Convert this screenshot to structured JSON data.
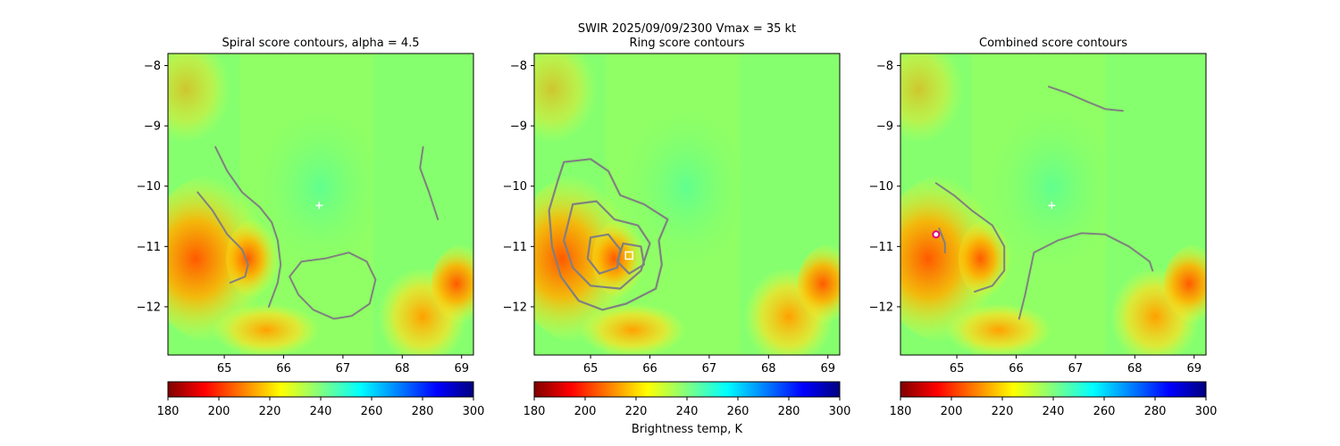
{
  "figure": {
    "suptitle_line1": "SWIR  2025/09/09/2300    Vmax = 35 kt",
    "colorbar_label": "Brightness temp, K"
  },
  "chart_data": [
    {
      "type": "heatmap",
      "title": "Spiral score contours, alpha =  4.5",
      "xlabel": "",
      "ylabel": "",
      "xlim": [
        64.05,
        69.2
      ],
      "ylim": [
        -12.8,
        -7.8
      ],
      "xticks": [
        65,
        66,
        67,
        68,
        69
      ],
      "yticks": [
        -8,
        -9,
        -10,
        -11,
        -12
      ],
      "grid": false,
      "contour_color": "#808080",
      "contours": [
        [
          [
            64.85,
            -9.35
          ],
          [
            65.05,
            -9.75
          ],
          [
            65.3,
            -10.1
          ],
          [
            65.6,
            -10.35
          ],
          [
            65.8,
            -10.6
          ],
          [
            65.9,
            -10.9
          ],
          [
            65.95,
            -11.3
          ],
          [
            65.9,
            -11.6
          ],
          [
            65.75,
            -12.0
          ]
        ],
        [
          [
            64.55,
            -10.1
          ],
          [
            64.8,
            -10.4
          ],
          [
            65.05,
            -10.8
          ],
          [
            65.3,
            -11.05
          ],
          [
            65.4,
            -11.3
          ],
          [
            65.35,
            -11.5
          ],
          [
            65.1,
            -11.6
          ]
        ],
        [
          [
            68.35,
            -9.35
          ],
          [
            68.3,
            -9.7
          ],
          [
            68.45,
            -10.1
          ],
          [
            68.6,
            -10.55
          ]
        ],
        [
          [
            66.1,
            -11.5
          ],
          [
            66.3,
            -11.25
          ],
          [
            66.7,
            -11.2
          ],
          [
            67.1,
            -11.1
          ],
          [
            67.4,
            -11.25
          ],
          [
            67.55,
            -11.55
          ],
          [
            67.45,
            -11.95
          ],
          [
            67.15,
            -12.15
          ],
          [
            66.85,
            -12.2
          ],
          [
            66.5,
            -12.05
          ],
          [
            66.25,
            -11.8
          ],
          [
            66.1,
            -11.5
          ]
        ]
      ],
      "markers": [
        {
          "shape": "plus",
          "x": 66.6,
          "y": -10.32,
          "color": "#ffffff"
        }
      ]
    },
    {
      "type": "heatmap",
      "title": "Ring score contours",
      "xlabel": "",
      "ylabel": "",
      "xlim": [
        64.05,
        69.2
      ],
      "ylim": [
        -12.8,
        -7.8
      ],
      "xticks": [
        65,
        66,
        67,
        68,
        69
      ],
      "yticks": [
        -8,
        -9,
        -10,
        -11,
        -12
      ],
      "grid": false,
      "contour_color": "#808080",
      "contours": [
        [
          [
            64.55,
            -9.6
          ],
          [
            65.0,
            -9.55
          ],
          [
            65.3,
            -9.75
          ],
          [
            65.5,
            -10.15
          ],
          [
            65.9,
            -10.3
          ],
          [
            66.3,
            -10.55
          ],
          [
            66.15,
            -10.9
          ],
          [
            66.2,
            -11.3
          ],
          [
            66.1,
            -11.7
          ],
          [
            65.6,
            -11.95
          ],
          [
            65.2,
            -12.05
          ],
          [
            64.8,
            -11.9
          ],
          [
            64.5,
            -11.5
          ],
          [
            64.35,
            -11.0
          ],
          [
            64.3,
            -10.4
          ],
          [
            64.45,
            -9.9
          ],
          [
            64.55,
            -9.6
          ]
        ],
        [
          [
            64.7,
            -10.3
          ],
          [
            65.1,
            -10.25
          ],
          [
            65.4,
            -10.55
          ],
          [
            65.8,
            -10.65
          ],
          [
            66.0,
            -10.95
          ],
          [
            65.85,
            -11.4
          ],
          [
            65.5,
            -11.7
          ],
          [
            65.0,
            -11.65
          ],
          [
            64.7,
            -11.35
          ],
          [
            64.55,
            -10.9
          ],
          [
            64.7,
            -10.3
          ]
        ],
        [
          [
            65.0,
            -10.85
          ],
          [
            65.3,
            -10.8
          ],
          [
            65.5,
            -11.05
          ],
          [
            65.45,
            -11.35
          ],
          [
            65.15,
            -11.45
          ],
          [
            64.95,
            -11.2
          ],
          [
            65.0,
            -10.85
          ]
        ],
        [
          [
            65.55,
            -10.95
          ],
          [
            65.85,
            -11.0
          ],
          [
            65.9,
            -11.3
          ],
          [
            65.65,
            -11.45
          ],
          [
            65.45,
            -11.25
          ],
          [
            65.55,
            -10.95
          ]
        ]
      ],
      "markers": [
        {
          "shape": "square",
          "x": 65.65,
          "y": -11.15,
          "color": "#ffffff"
        }
      ]
    },
    {
      "type": "heatmap",
      "title": "Combined score contours",
      "xlabel": "",
      "ylabel": "",
      "xlim": [
        64.05,
        69.2
      ],
      "ylim": [
        -12.8,
        -7.8
      ],
      "xticks": [
        65,
        66,
        67,
        68,
        69
      ],
      "yticks": [
        -8,
        -9,
        -10,
        -11,
        -12
      ],
      "grid": false,
      "contour_color": "#808080",
      "contours": [
        [
          [
            66.55,
            -8.35
          ],
          [
            66.85,
            -8.45
          ],
          [
            67.2,
            -8.6
          ],
          [
            67.5,
            -8.72
          ],
          [
            67.8,
            -8.75
          ]
        ],
        [
          [
            64.65,
            -9.95
          ],
          [
            64.95,
            -10.15
          ],
          [
            65.25,
            -10.4
          ],
          [
            65.6,
            -10.65
          ],
          [
            65.8,
            -11.0
          ],
          [
            65.8,
            -11.4
          ],
          [
            65.6,
            -11.65
          ],
          [
            65.3,
            -11.75
          ]
        ],
        [
          [
            64.7,
            -10.7
          ],
          [
            64.8,
            -10.95
          ],
          [
            64.8,
            -11.1
          ]
        ],
        [
          [
            66.05,
            -12.2
          ],
          [
            66.15,
            -11.8
          ],
          [
            66.3,
            -11.1
          ],
          [
            66.7,
            -10.9
          ],
          [
            67.1,
            -10.78
          ],
          [
            67.5,
            -10.8
          ],
          [
            67.9,
            -11.0
          ],
          [
            68.25,
            -11.25
          ],
          [
            68.3,
            -11.4
          ]
        ]
      ],
      "markers": [
        {
          "shape": "plus",
          "x": 66.6,
          "y": -10.32,
          "color": "#ffffff"
        },
        {
          "shape": "circle",
          "x": 64.65,
          "y": -10.8,
          "color": "#e0007a"
        }
      ]
    }
  ],
  "colorbar": {
    "colormap": "jet_r",
    "range": [
      180,
      300
    ],
    "ticks": [
      180,
      200,
      220,
      240,
      260,
      280,
      300
    ]
  }
}
